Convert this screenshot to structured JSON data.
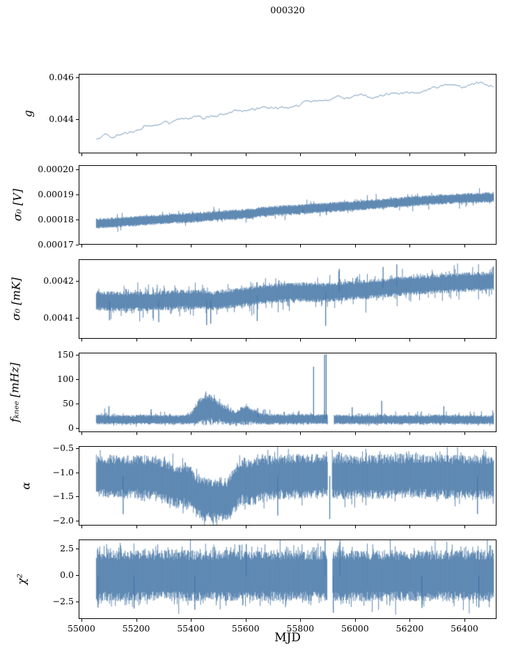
{
  "title": "000320",
  "style": {
    "line_color": "#4878a8",
    "axis_color": "#000000",
    "background": "#ffffff"
  },
  "x_axis": {
    "label": "MJD",
    "lim": [
      54990,
      56517
    ],
    "ticks": [
      55000,
      55200,
      55400,
      55600,
      55800,
      56000,
      56200,
      56400
    ],
    "tick_labels": [
      "55000",
      "55200",
      "55400",
      "55600",
      "55800",
      "56000",
      "56200",
      "56400"
    ],
    "data_range": [
      55052,
      56505
    ]
  },
  "chart_data": [
    {
      "name": "gain",
      "ylabel": "g",
      "type": "line",
      "ylim": [
        0.042367,
        0.046167
      ],
      "yticks": [
        0.044,
        0.046
      ],
      "ytick_labels": [
        "0.044",
        "0.046"
      ],
      "noise_amp": 0.00016,
      "trend": [
        [
          55052,
          0.043
        ],
        [
          55080,
          0.0432
        ],
        [
          55120,
          0.0433
        ],
        [
          55170,
          0.04345
        ],
        [
          55220,
          0.04363
        ],
        [
          55270,
          0.04373
        ],
        [
          55320,
          0.04393
        ],
        [
          55370,
          0.044
        ],
        [
          55420,
          0.04415
        ],
        [
          55470,
          0.04425
        ],
        [
          55520,
          0.04428
        ],
        [
          55570,
          0.0444
        ],
        [
          55620,
          0.04453
        ],
        [
          55670,
          0.04458
        ],
        [
          55720,
          0.04466
        ],
        [
          55770,
          0.0447
        ],
        [
          55820,
          0.04478
        ],
        [
          55870,
          0.0449
        ],
        [
          55920,
          0.04497
        ],
        [
          55970,
          0.04505
        ],
        [
          56020,
          0.04512
        ],
        [
          56070,
          0.04517
        ],
        [
          56120,
          0.04525
        ],
        [
          56170,
          0.04532
        ],
        [
          56220,
          0.04546
        ],
        [
          56270,
          0.04548
        ],
        [
          56320,
          0.04557
        ],
        [
          56370,
          0.04563
        ],
        [
          56420,
          0.04566
        ],
        [
          56470,
          0.0457
        ],
        [
          56505,
          0.04572
        ]
      ],
      "spikes": [],
      "gaps": []
    },
    {
      "name": "sigma0_V",
      "ylabel": "σ₀ [V]",
      "type": "band",
      "ylim": [
        0.0001701,
        0.0002016
      ],
      "yticks": [
        0.00017,
        0.00018,
        0.00019,
        0.0002
      ],
      "ytick_labels": [
        "0.00017",
        "0.00018",
        "0.00019",
        "0.00020"
      ],
      "half_width": 1.6e-06,
      "tail_prob": 0.05,
      "tail_amp": 2.2e-06,
      "trend": [
        [
          55052,
          0.0001787
        ],
        [
          55150,
          0.0001794
        ],
        [
          55250,
          0.0001801
        ],
        [
          55350,
          0.0001808
        ],
        [
          55420,
          0.0001812
        ],
        [
          55480,
          0.0001818
        ],
        [
          55550,
          0.0001822
        ],
        [
          55620,
          0.0001827
        ],
        [
          55660,
          0.0001834
        ],
        [
          55720,
          0.0001839
        ],
        [
          55790,
          0.0001843
        ],
        [
          55860,
          0.0001849
        ],
        [
          55930,
          0.0001853
        ],
        [
          56000,
          0.0001858
        ],
        [
          56080,
          0.0001865
        ],
        [
          56160,
          0.0001871
        ],
        [
          56240,
          0.0001878
        ],
        [
          56320,
          0.0001884
        ],
        [
          56400,
          0.0001888
        ],
        [
          56505,
          0.0001892
        ]
      ],
      "spikes": [
        [
          55420,
          0.00018
        ],
        [
          55807,
          0.0001828
        ],
        [
          55893,
          0.0001821
        ],
        [
          56310,
          0.0001871
        ]
      ],
      "gaps": []
    },
    {
      "name": "sigma0_mK",
      "ylabel": "σ₀ [mK]",
      "type": "band",
      "ylim": [
        0.004043,
        0.004259
      ],
      "yticks": [
        0.0041,
        0.0042
      ],
      "ytick_labels": [
        "0.0041",
        "0.0042"
      ],
      "half_width": 2.1e-05,
      "tail_prob": 0.1,
      "tail_amp": 3e-05,
      "trend": [
        [
          55052,
          0.004148
        ],
        [
          55150,
          0.004146
        ],
        [
          55250,
          0.004147
        ],
        [
          55330,
          0.00415
        ],
        [
          55420,
          0.004152
        ],
        [
          55480,
          0.004148
        ],
        [
          55560,
          0.004155
        ],
        [
          55620,
          0.004161
        ],
        [
          55680,
          0.004167
        ],
        [
          55740,
          0.00417
        ],
        [
          55800,
          0.004172
        ],
        [
          55860,
          0.00417
        ],
        [
          55920,
          0.004172
        ],
        [
          55980,
          0.004176
        ],
        [
          56040,
          0.004179
        ],
        [
          56100,
          0.004183
        ],
        [
          56160,
          0.004187
        ],
        [
          56220,
          0.004191
        ],
        [
          56280,
          0.004193
        ],
        [
          56340,
          0.004196
        ],
        [
          56400,
          0.004199
        ],
        [
          56505,
          0.0042
        ]
      ],
      "spikes": [
        [
          55100,
          0.004095
        ],
        [
          55280,
          0.00409
        ],
        [
          55455,
          0.004082
        ],
        [
          55470,
          0.004086
        ],
        [
          55640,
          0.004093
        ],
        [
          55890,
          0.00408
        ],
        [
          55940,
          0.004235
        ],
        [
          56100,
          0.00424
        ],
        [
          56150,
          0.004247
        ]
      ],
      "gaps": []
    },
    {
      "name": "f_knee",
      "ylabel": "fₖₙₑₑ [mHz]",
      "type": "band_env",
      "ylim": [
        -8.6,
        154.3
      ],
      "yticks": [
        0,
        50,
        100,
        150
      ],
      "ytick_labels": [
        "0",
        "50",
        "100",
        "150"
      ],
      "tail_prob": 0.1,
      "tail_amp": 12,
      "tail_amp_low": 4,
      "floor": 2,
      "env_low": [
        [
          55052,
          9
        ],
        [
          56505,
          9
        ]
      ],
      "env_high": [
        [
          55052,
          30
        ],
        [
          55150,
          28
        ],
        [
          55250,
          29
        ],
        [
          55350,
          28
        ],
        [
          55395,
          30
        ],
        [
          55425,
          60
        ],
        [
          55450,
          75
        ],
        [
          55470,
          72
        ],
        [
          55500,
          58
        ],
        [
          55530,
          45
        ],
        [
          55560,
          36
        ],
        [
          55580,
          45
        ],
        [
          55600,
          52
        ],
        [
          55620,
          42
        ],
        [
          55650,
          33
        ],
        [
          55700,
          30
        ],
        [
          55800,
          31
        ],
        [
          55900,
          30
        ],
        [
          56000,
          28
        ],
        [
          56100,
          29
        ],
        [
          56200,
          28
        ],
        [
          56300,
          29
        ],
        [
          56400,
          28
        ],
        [
          56505,
          27
        ]
      ],
      "spikes": [
        [
          55098,
          46
        ],
        [
          55252,
          40
        ],
        [
          55642,
          42
        ],
        [
          55846,
          127
        ],
        [
          55886,
          152
        ],
        [
          55892,
          153
        ],
        [
          55987,
          44
        ],
        [
          56095,
          57
        ],
        [
          56322,
          46
        ]
      ],
      "gaps": [
        [
          55898,
          55920
        ]
      ]
    },
    {
      "name": "alpha",
      "ylabel": "α",
      "type": "band_env",
      "ylim": [
        -2.101,
        -0.457
      ],
      "yticks": [
        -2.0,
        -1.5,
        -1.0,
        -0.5
      ],
      "ytick_labels": [
        "−2.0",
        "−1.5",
        "−1.0",
        "−0.5"
      ],
      "tail_prob": 0.09,
      "tail_amp": 0.22,
      "tail_amp_low": 0.22,
      "env_high": [
        [
          55052,
          -0.62
        ],
        [
          55270,
          -0.63
        ],
        [
          55300,
          -0.72
        ],
        [
          55340,
          -0.78
        ],
        [
          55395,
          -0.82
        ],
        [
          55420,
          -1.02
        ],
        [
          55450,
          -1.08
        ],
        [
          55530,
          -1.08
        ],
        [
          55555,
          -0.85
        ],
        [
          55580,
          -0.66
        ],
        [
          55620,
          -0.72
        ],
        [
          55655,
          -0.63
        ],
        [
          55800,
          -0.6
        ],
        [
          56000,
          -0.62
        ],
        [
          56200,
          -0.6
        ],
        [
          56400,
          -0.62
        ],
        [
          56505,
          -0.62
        ]
      ],
      "env_low": [
        [
          55052,
          -1.48
        ],
        [
          55270,
          -1.52
        ],
        [
          55300,
          -1.6
        ],
        [
          55340,
          -1.68
        ],
        [
          55395,
          -1.72
        ],
        [
          55420,
          -1.92
        ],
        [
          55450,
          -1.98
        ],
        [
          55530,
          -2.0
        ],
        [
          55555,
          -1.85
        ],
        [
          55580,
          -1.62
        ],
        [
          55620,
          -1.68
        ],
        [
          55655,
          -1.55
        ],
        [
          55800,
          -1.5
        ],
        [
          56000,
          -1.52
        ],
        [
          56200,
          -1.48
        ],
        [
          56400,
          -1.52
        ],
        [
          56505,
          -1.5
        ]
      ],
      "spikes": [
        [
          55150,
          -1.85
        ],
        [
          55715,
          -1.88
        ],
        [
          55905,
          -1.95
        ],
        [
          56445,
          -1.85
        ]
      ],
      "gaps": [
        [
          55898,
          55914
        ]
      ]
    },
    {
      "name": "chi2",
      "ylabel": "χ²",
      "type": "band",
      "ylim": [
        -4.145,
        3.355
      ],
      "yticks": [
        -2.5,
        0.0,
        2.5
      ],
      "ytick_labels": [
        "−2.5",
        "0.0",
        "2.5"
      ],
      "half_width": 1.9,
      "tail_prob": 0.13,
      "tail_amp": 1.2,
      "trend": [
        [
          55052,
          0
        ],
        [
          56505,
          0
        ]
      ],
      "spikes": [
        [
          55058,
          -3.0
        ],
        [
          55190,
          -3.1
        ],
        [
          55412,
          -3.2
        ],
        [
          55600,
          3.0
        ],
        [
          55888,
          3.4
        ],
        [
          55918,
          -3.5
        ],
        [
          55942,
          3.15
        ],
        [
          56242,
          -3.05
        ],
        [
          56450,
          -3.0
        ]
      ],
      "gaps": [
        [
          55896,
          55916
        ]
      ]
    }
  ]
}
